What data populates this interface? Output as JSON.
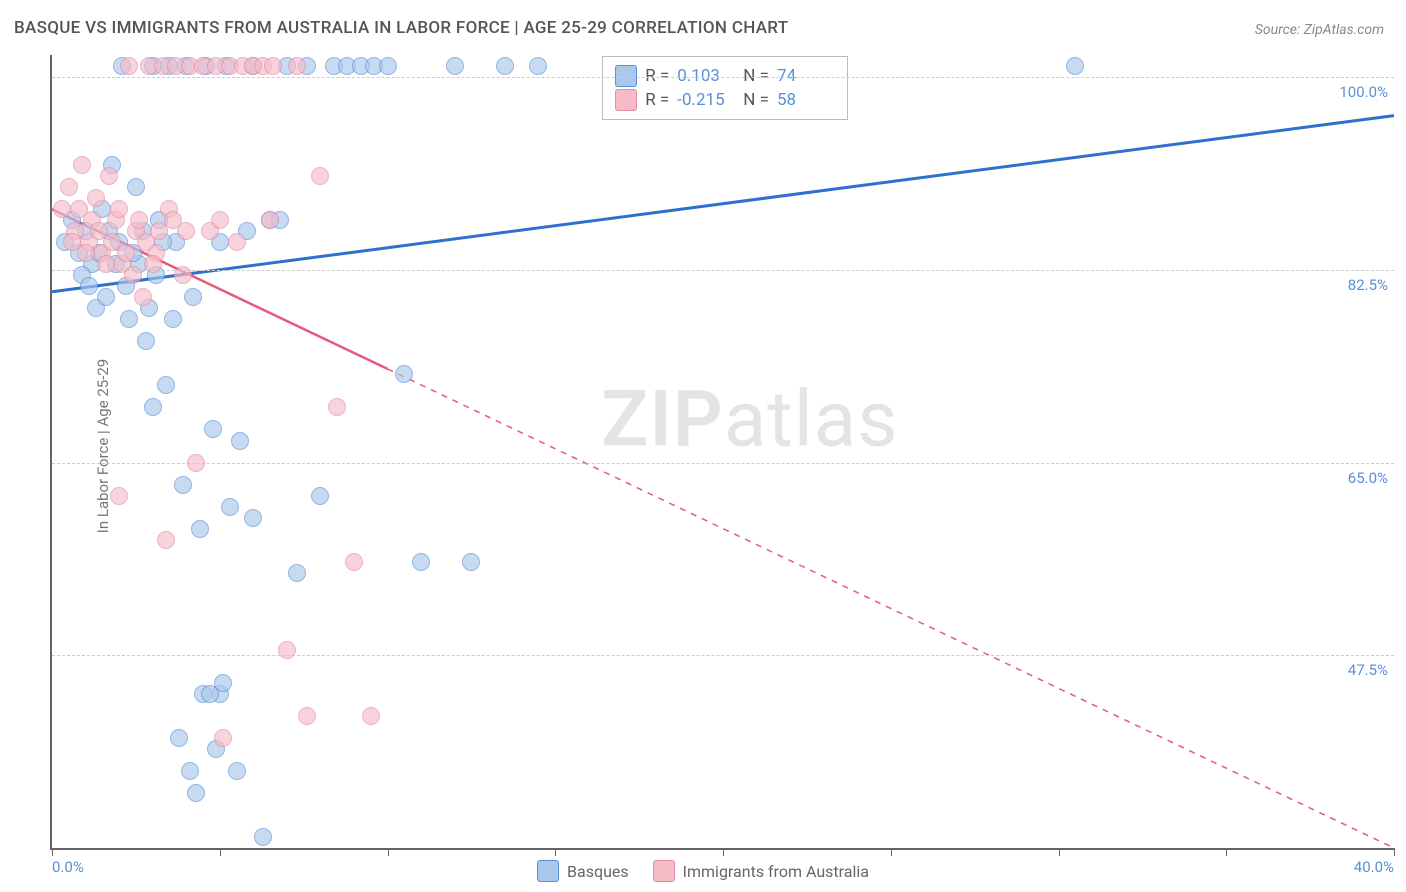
{
  "title": "BASQUE VS IMMIGRANTS FROM AUSTRALIA IN LABOR FORCE | AGE 25-29 CORRELATION CHART",
  "source": "Source: ZipAtlas.com",
  "ylabel": "In Labor Force | Age 25-29",
  "watermark_bold": "ZIP",
  "watermark_rest": "atlas",
  "chart": {
    "type": "scatter",
    "xlim": [
      0,
      40
    ],
    "ylim": [
      30,
      102
    ],
    "x_ticks": [
      0,
      5,
      10,
      15,
      20,
      25,
      30,
      35,
      40
    ],
    "x_tick_labels": {
      "0": "0.0%",
      "40": "40.0%"
    },
    "y_gridlines": [
      47.5,
      65.0,
      82.5,
      100.0
    ],
    "y_tick_labels": [
      "47.5%",
      "65.0%",
      "82.5%",
      "100.0%"
    ],
    "grid_color": "#cccccc",
    "axis_color": "#666666",
    "background": "#ffffff",
    "point_radius": 9,
    "series": [
      {
        "name": "Basques",
        "fill": "#a9c8ec",
        "stroke": "#5b8fd6",
        "r_value": "0.103",
        "n_value": "74",
        "trend": {
          "x1": 0,
          "y1": 80.5,
          "x2": 40,
          "y2": 96.5,
          "solid_until_x": 40,
          "stroke": "#2f6fd0",
          "width": 3
        },
        "points": [
          [
            0.4,
            85
          ],
          [
            0.6,
            87
          ],
          [
            0.8,
            84
          ],
          [
            1.0,
            86
          ],
          [
            1.2,
            83
          ],
          [
            1.3,
            79
          ],
          [
            1.5,
            88
          ],
          [
            1.6,
            80
          ],
          [
            1.8,
            92
          ],
          [
            2.0,
            85
          ],
          [
            2.1,
            101
          ],
          [
            2.3,
            78
          ],
          [
            2.5,
            90
          ],
          [
            2.6,
            83
          ],
          [
            2.8,
            76
          ],
          [
            3.0,
            101
          ],
          [
            3.2,
            87
          ],
          [
            3.4,
            72
          ],
          [
            3.5,
            101
          ],
          [
            3.7,
            85
          ],
          [
            3.9,
            63
          ],
          [
            4.0,
            101
          ],
          [
            4.2,
            80
          ],
          [
            4.4,
            59
          ],
          [
            4.6,
            101
          ],
          [
            4.8,
            68
          ],
          [
            5.0,
            44
          ],
          [
            5.2,
            101
          ],
          [
            5.5,
            37
          ],
          [
            5.8,
            86
          ],
          [
            6.0,
            101
          ],
          [
            6.3,
            31
          ],
          [
            6.5,
            87
          ],
          [
            7.0,
            101
          ],
          [
            7.3,
            55
          ],
          [
            7.6,
            101
          ],
          [
            8.0,
            62
          ],
          [
            8.4,
            101
          ],
          [
            8.8,
            101
          ],
          [
            9.2,
            101
          ],
          [
            9.6,
            101
          ],
          [
            10.0,
            101
          ],
          [
            10.5,
            73
          ],
          [
            11.0,
            56
          ],
          [
            12.0,
            101
          ],
          [
            12.5,
            56
          ],
          [
            13.5,
            101
          ],
          [
            14.5,
            101
          ],
          [
            30.5,
            101
          ],
          [
            0.9,
            82
          ],
          [
            1.1,
            81
          ],
          [
            1.4,
            84
          ],
          [
            1.7,
            86
          ],
          [
            1.9,
            83
          ],
          [
            2.2,
            81
          ],
          [
            2.4,
            84
          ],
          [
            2.7,
            86
          ],
          [
            2.9,
            79
          ],
          [
            3.1,
            82
          ],
          [
            3.3,
            85
          ],
          [
            3.6,
            78
          ],
          [
            3.8,
            40
          ],
          [
            4.1,
            37
          ],
          [
            4.3,
            35
          ],
          [
            4.5,
            44
          ],
          [
            4.7,
            44
          ],
          [
            4.9,
            39
          ],
          [
            5.1,
            45
          ],
          [
            5.3,
            61
          ],
          [
            5.6,
            67
          ],
          [
            3.0,
            70
          ],
          [
            5.0,
            85
          ],
          [
            6.0,
            60
          ],
          [
            6.8,
            87
          ]
        ]
      },
      {
        "name": "Immigrants from Australia",
        "fill": "#f5bcc8",
        "stroke": "#e68aa0",
        "r_value": "-0.215",
        "n_value": "58",
        "trend": {
          "x1": 0,
          "y1": 88.0,
          "x2": 40,
          "y2": 30.0,
          "solid_until_x": 10,
          "stroke": "#e45a7a",
          "width": 2.5
        },
        "points": [
          [
            0.3,
            88
          ],
          [
            0.5,
            90
          ],
          [
            0.7,
            86
          ],
          [
            0.9,
            92
          ],
          [
            1.1,
            85
          ],
          [
            1.3,
            89
          ],
          [
            1.5,
            84
          ],
          [
            1.7,
            91
          ],
          [
            1.9,
            87
          ],
          [
            2.1,
            83
          ],
          [
            2.3,
            101
          ],
          [
            2.5,
            86
          ],
          [
            2.7,
            80
          ],
          [
            2.9,
            101
          ],
          [
            3.1,
            84
          ],
          [
            3.3,
            101
          ],
          [
            3.5,
            88
          ],
          [
            3.7,
            101
          ],
          [
            3.9,
            82
          ],
          [
            4.1,
            101
          ],
          [
            4.3,
            65
          ],
          [
            4.5,
            101
          ],
          [
            4.7,
            86
          ],
          [
            4.9,
            101
          ],
          [
            5.1,
            40
          ],
          [
            5.3,
            101
          ],
          [
            5.5,
            85
          ],
          [
            5.7,
            101
          ],
          [
            6.0,
            101
          ],
          [
            6.3,
            101
          ],
          [
            6.6,
            101
          ],
          [
            7.0,
            48
          ],
          [
            7.3,
            101
          ],
          [
            7.6,
            42
          ],
          [
            8.0,
            91
          ],
          [
            8.5,
            70
          ],
          [
            9.0,
            56
          ],
          [
            9.5,
            42
          ],
          [
            0.6,
            85
          ],
          [
            0.8,
            88
          ],
          [
            1.0,
            84
          ],
          [
            1.2,
            87
          ],
          [
            1.4,
            86
          ],
          [
            1.6,
            83
          ],
          [
            1.8,
            85
          ],
          [
            2.0,
            88
          ],
          [
            2.2,
            84
          ],
          [
            2.4,
            82
          ],
          [
            2.6,
            87
          ],
          [
            2.8,
            85
          ],
          [
            3.0,
            83
          ],
          [
            3.2,
            86
          ],
          [
            2.0,
            62
          ],
          [
            3.4,
            58
          ],
          [
            3.6,
            87
          ],
          [
            4.0,
            86
          ],
          [
            5.0,
            87
          ],
          [
            6.5,
            87
          ]
        ]
      }
    ]
  },
  "legend_top": {
    "r_label": "R =",
    "n_label": "N ="
  },
  "legend_bottom": [
    "Basques",
    "Immigrants from Australia"
  ]
}
